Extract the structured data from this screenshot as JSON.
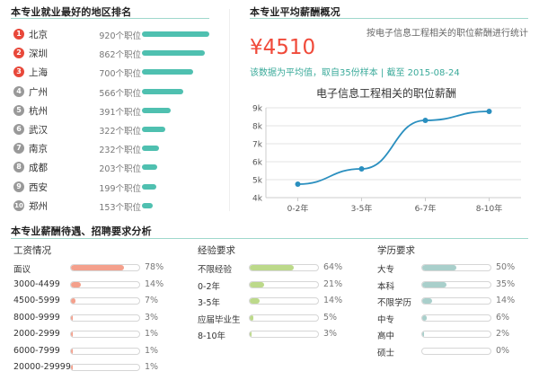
{
  "regions": {
    "title": "本专业就业最好的地区排名",
    "items": [
      {
        "rank": "1",
        "name": "北京",
        "count": "920个职位",
        "value": 920
      },
      {
        "rank": "2",
        "name": "深圳",
        "count": "862个职位",
        "value": 862
      },
      {
        "rank": "3",
        "name": "上海",
        "count": "700个职位",
        "value": 700
      },
      {
        "rank": "4",
        "name": "广州",
        "count": "566个职位",
        "value": 566
      },
      {
        "rank": "5",
        "name": "杭州",
        "count": "391个职位",
        "value": 391
      },
      {
        "rank": "6",
        "name": "武汉",
        "count": "322个职位",
        "value": 322
      },
      {
        "rank": "7",
        "name": "南京",
        "count": "232个职位",
        "value": 232
      },
      {
        "rank": "8",
        "name": "成都",
        "count": "203个职位",
        "value": 203
      },
      {
        "rank": "9",
        "name": "西安",
        "count": "199个职位",
        "value": 199
      },
      {
        "rank": "10",
        "name": "郑州",
        "count": "153个职位",
        "value": 153
      }
    ],
    "top_rank_color": "#e8483a",
    "other_rank_color": "#999999",
    "bar_color": "#4fc0b0"
  },
  "salary": {
    "title": "本专业平均薪酬概况",
    "note": "按电子信息工程相关的职位薪酬进行统计",
    "value": "¥4510",
    "sub": "该数据为平均值，取自35份样本 | 截至 2015-08-24",
    "value_color": "#f04a3a"
  },
  "chart_data": {
    "type": "line",
    "title": "电子信息工程相关的职位薪酬",
    "categories": [
      "0-2年",
      "3-5年",
      "6-7年",
      "8-10年"
    ],
    "values": [
      4750,
      5600,
      8300,
      8800
    ],
    "ylim": [
      4000,
      9000
    ],
    "yticks": [
      "4k",
      "5k",
      "6k",
      "7k",
      "8k",
      "9k"
    ],
    "grid": true,
    "line_color": "#2a8fbf"
  },
  "analysis": {
    "title": "本专业薪酬待遇、招聘要求分析",
    "salary": {
      "head": "工资情况",
      "color": "#f4a08c",
      "items": [
        {
          "label": "面议",
          "pct": "78%",
          "value": 78
        },
        {
          "label": "3000-4499",
          "pct": "14%",
          "value": 14
        },
        {
          "label": "4500-5999",
          "pct": "7%",
          "value": 7
        },
        {
          "label": "8000-9999",
          "pct": "3%",
          "value": 3
        },
        {
          "label": "2000-2999",
          "pct": "1%",
          "value": 1
        },
        {
          "label": "6000-7999",
          "pct": "1%",
          "value": 1
        },
        {
          "label": "20000-29999",
          "pct": "1%",
          "value": 1
        }
      ]
    },
    "experience": {
      "head": "经验要求",
      "color": "#bcd98a",
      "items": [
        {
          "label": "不限经验",
          "pct": "64%",
          "value": 64
        },
        {
          "label": "0-2年",
          "pct": "21%",
          "value": 21
        },
        {
          "label": "3-5年",
          "pct": "14%",
          "value": 14
        },
        {
          "label": "应届毕业生",
          "pct": "5%",
          "value": 5
        },
        {
          "label": "8-10年",
          "pct": "3%",
          "value": 3
        }
      ]
    },
    "education": {
      "head": "学历要求",
      "color": "#a9cfcb",
      "items": [
        {
          "label": "大专",
          "pct": "50%",
          "value": 50
        },
        {
          "label": "本科",
          "pct": "35%",
          "value": 35
        },
        {
          "label": "不限学历",
          "pct": "14%",
          "value": 14
        },
        {
          "label": "中专",
          "pct": "6%",
          "value": 6
        },
        {
          "label": "高中",
          "pct": "2%",
          "value": 2
        },
        {
          "label": "硕士",
          "pct": "0%",
          "value": 0
        }
      ]
    }
  }
}
